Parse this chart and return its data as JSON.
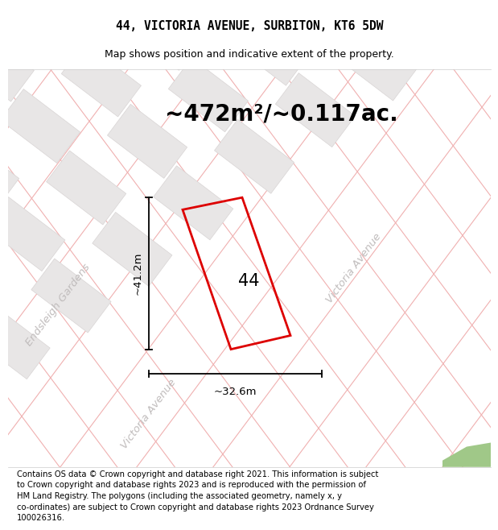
{
  "title": "44, VICTORIA AVENUE, SURBITON, KT6 5DW",
  "subtitle": "Map shows position and indicative extent of the property.",
  "area_text": "~472m²/~0.117ac.",
  "dim_vertical": "~41.2m",
  "dim_horizontal": "~32.6m",
  "property_label": "44",
  "street1": "Endsleigh Gardens",
  "street2": "Victoria Avenue",
  "street3": "Victoria Avenue",
  "footer": "Contains OS data © Crown copyright and database right 2021. This information is subject\nto Crown copyright and database rights 2023 and is reproduced with the permission of\nHM Land Registry. The polygons (including the associated geometry, namely x, y\nco-ordinates) are subject to Crown copyright and database rights 2023 Ordnance Survey\n100026316.",
  "map_bg": "#f8f8f8",
  "plot_bg": "#ffffff",
  "header_bg": "#ffffff",
  "footer_bg": "#ffffff",
  "road_color": "#f0b0b0",
  "block_color": "#e8e6e6",
  "block_edge": "#d8d4d4",
  "red_color": "#dd0000",
  "green_color": "#a0c888",
  "title_fontsize": 10.5,
  "subtitle_fontsize": 9,
  "area_fontsize": 20,
  "label_fontsize": 15,
  "dim_fontsize": 9.5,
  "footer_fontsize": 7.2,
  "street_fontsize": 9.5
}
